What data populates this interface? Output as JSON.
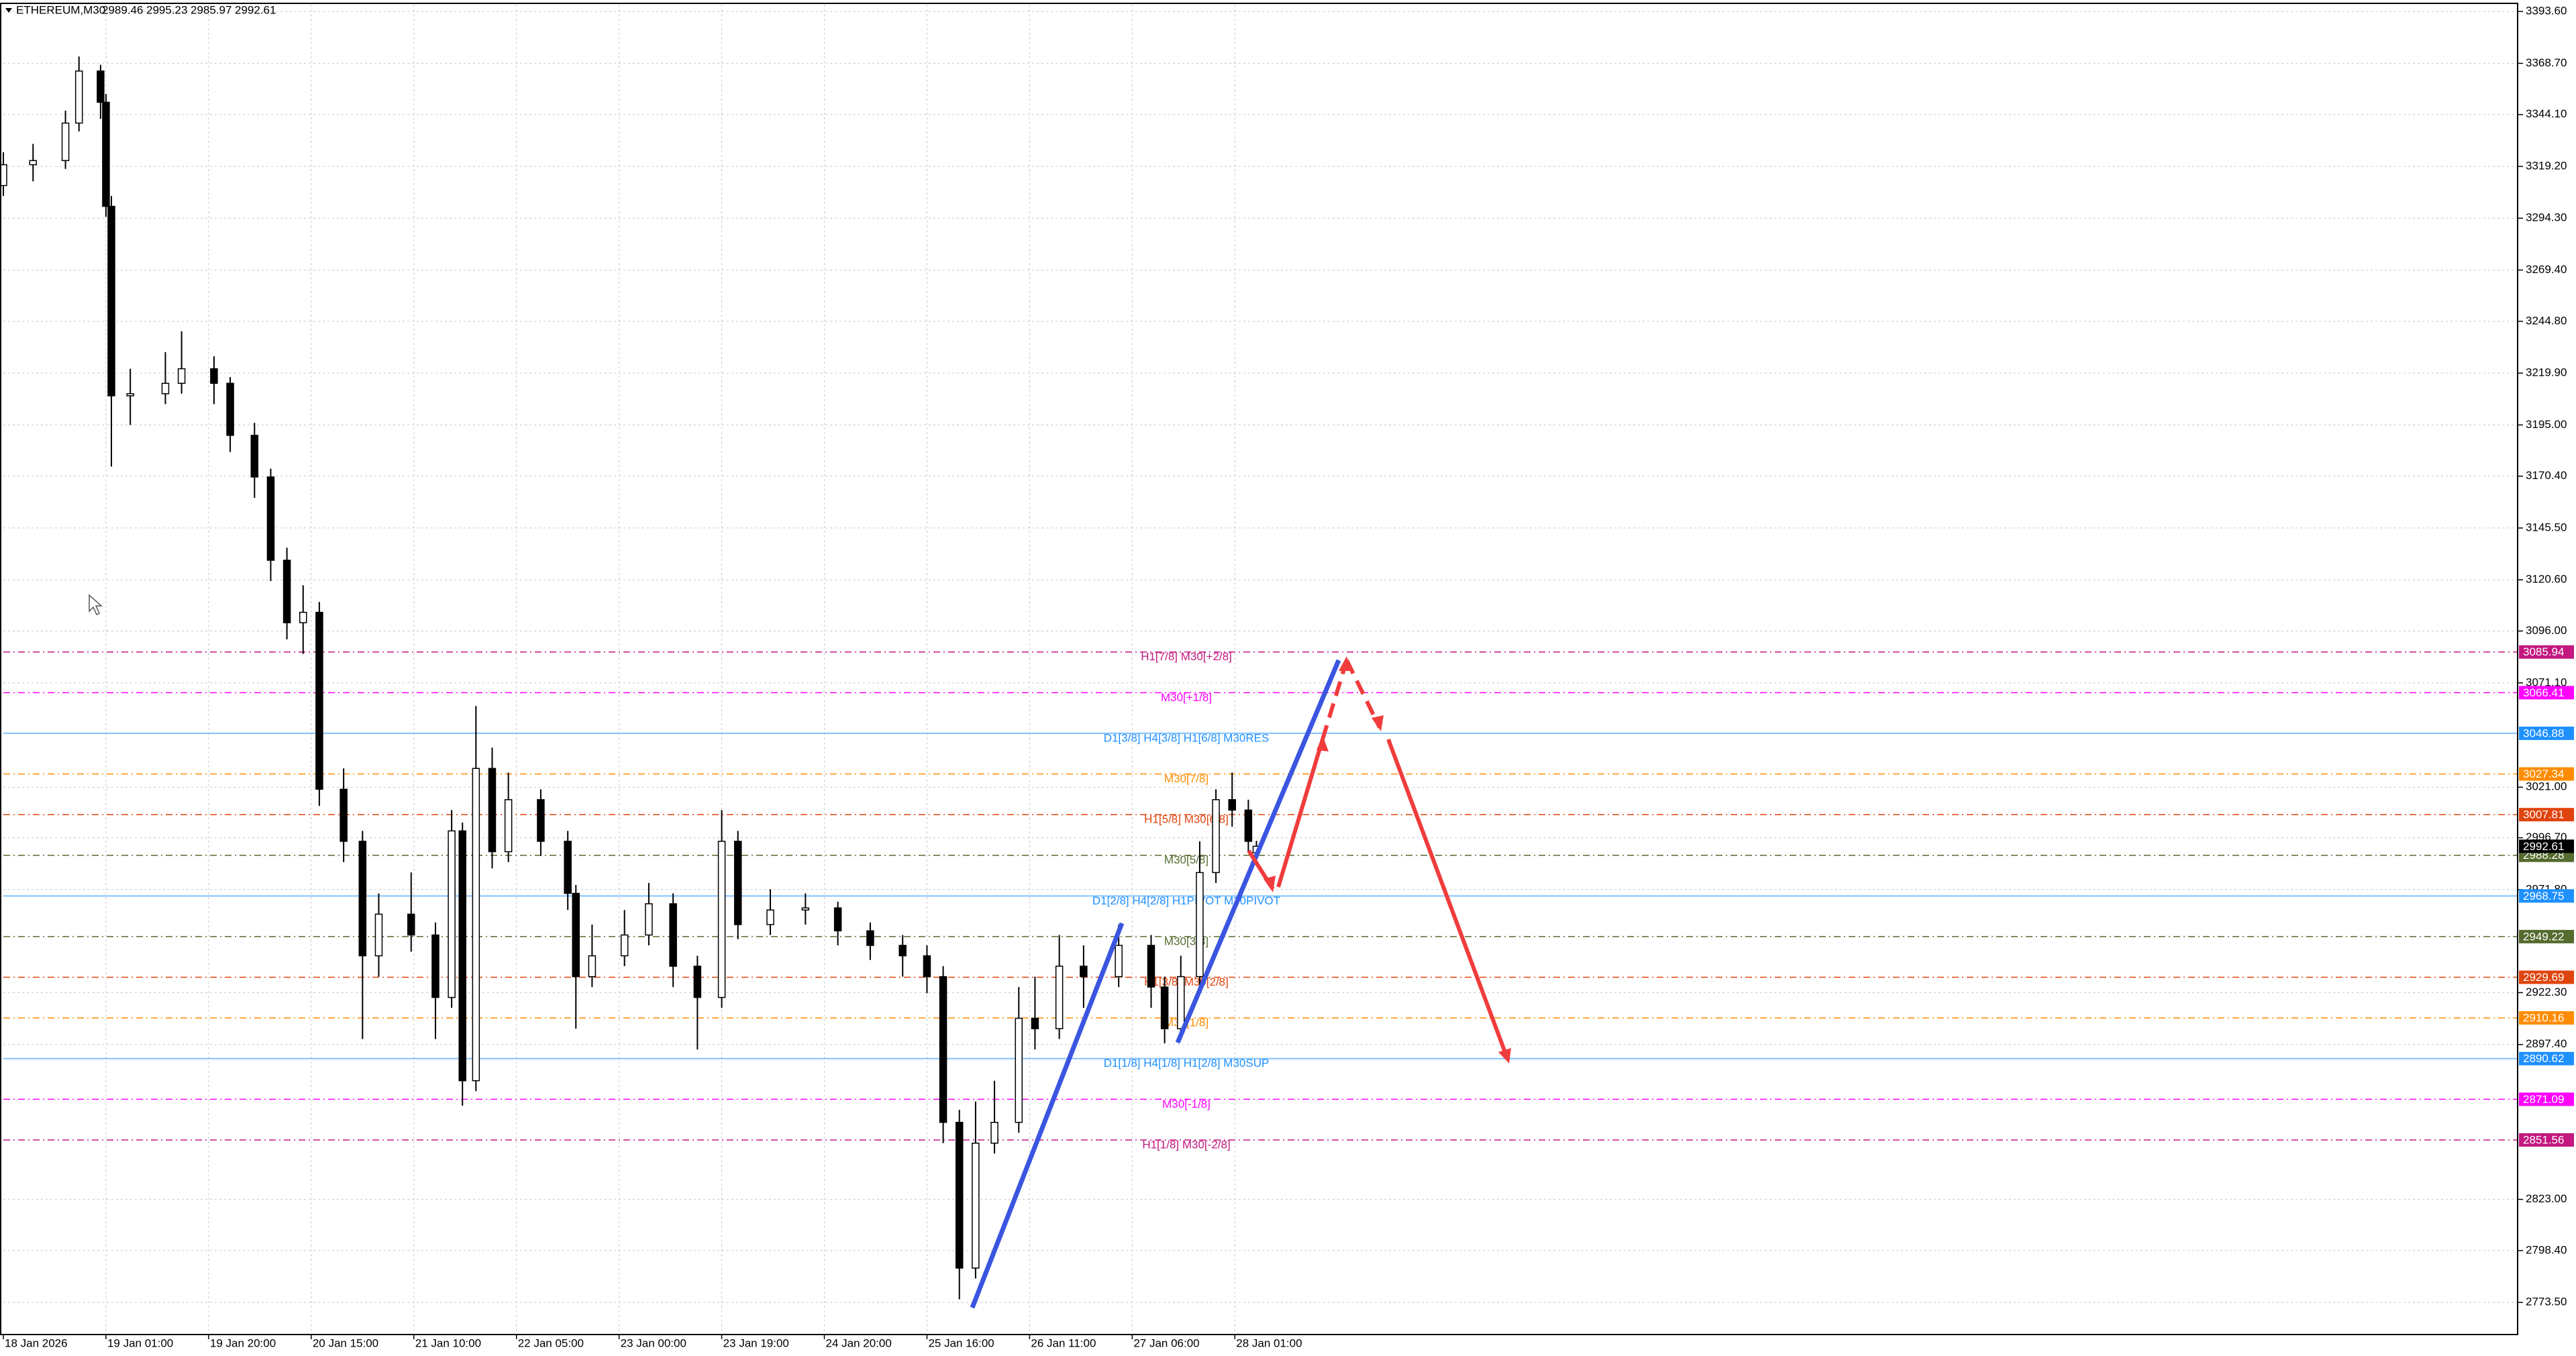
{
  "chart_data": {
    "type": "candlestick",
    "symbol": "ETHEREUM,M30",
    "x": [
      0,
      11,
      23,
      28,
      36,
      38,
      40,
      47,
      60,
      66,
      78,
      84,
      93,
      99,
      105,
      111,
      117,
      126,
      133,
      139,
      151,
      160,
      166,
      170,
      175,
      181,
      187,
      199,
      209,
      212,
      218,
      230,
      239,
      248,
      257,
      266,
      272,
      284,
      297,
      309,
      321,
      333,
      342,
      348,
      354,
      360,
      367,
      376,
      382,
      391,
      400,
      413,
      425,
      430,
      436,
      443,
      449,
      455,
      461,
      464
    ],
    "open": [
      3310,
      3320,
      3322,
      3340,
      3365,
      3350,
      3300,
      3209,
      3210,
      3215,
      3222,
      3215,
      3190,
      3170,
      3130,
      3100,
      3105,
      3020,
      2995,
      2940,
      2960,
      2950,
      2920,
      3000,
      2880,
      3030,
      2990,
      3015,
      2995,
      2970,
      2930,
      2940,
      2950,
      2965,
      2935,
      2920,
      2995,
      2955,
      2962,
      2963,
      2952,
      2945,
      2940,
      2930,
      2860,
      2790,
      2850,
      2860,
      2910,
      2905,
      2935,
      2930,
      2945,
      2925,
      2905,
      2930,
      2980,
      3015,
      3010,
      2989.46
    ],
    "high": [
      3326,
      3330,
      3346,
      3372,
      3368,
      3354,
      3305,
      3222,
      3230,
      3240,
      3228,
      3218,
      3196,
      3174,
      3136,
      3118,
      3110,
      3030,
      3000,
      2970,
      2980,
      2956,
      3010,
      3004,
      3060,
      3040,
      3028,
      3020,
      3000,
      2974,
      2955,
      2962,
      2975,
      2970,
      2940,
      3010,
      3000,
      2972,
      2970,
      2966,
      2956,
      2950,
      2945,
      2935,
      2866,
      2870,
      2880,
      2925,
      2930,
      2950,
      2945,
      2955,
      2950,
      2930,
      2940,
      2995,
      3020,
      3028,
      3015,
      2995.23
    ],
    "low": [
      3305,
      3312,
      3318,
      3336,
      3342,
      3295,
      3175,
      3195,
      3205,
      3210,
      3205,
      3182,
      3160,
      3120,
      3092,
      3085,
      3012,
      2985,
      2900,
      2930,
      2942,
      2900,
      2915,
      2868,
      2875,
      2982,
      2985,
      2988,
      2962,
      2905,
      2925,
      2935,
      2945,
      2925,
      2895,
      2915,
      2948,
      2950,
      2955,
      2945,
      2938,
      2930,
      2922,
      2850,
      2775,
      2785,
      2845,
      2855,
      2895,
      2900,
      2915,
      2925,
      2915,
      2898,
      2900,
      2925,
      2975,
      3002,
      2990,
      2985.97
    ],
    "close": [
      3320,
      3322,
      3340,
      3365,
      3350,
      3300,
      3209,
      3210,
      3215,
      3222,
      3215,
      3190,
      3170,
      3130,
      3100,
      3105,
      3020,
      2995,
      2940,
      2960,
      2950,
      2920,
      3000,
      2880,
      3030,
      2990,
      3015,
      2995,
      2970,
      2930,
      2940,
      2950,
      2965,
      2935,
      2920,
      2995,
      2955,
      2962,
      2963,
      2952,
      2945,
      2940,
      2930,
      2860,
      2790,
      2850,
      2860,
      2910,
      2905,
      2935,
      2930,
      2945,
      2925,
      2905,
      2930,
      2980,
      3015,
      3010,
      2995,
      2992.61
    ],
    "xlim": [
      0,
      931
    ],
    "xticks": [
      {
        "value": 0,
        "label": "18 Jan 2026"
      },
      {
        "value": 38,
        "label": "19 Jan 01:00"
      },
      {
        "value": 76,
        "label": "19 Jan 20:00"
      },
      {
        "value": 114,
        "label": "20 Jan 15:00"
      },
      {
        "value": 152,
        "label": "21 Jan 10:00"
      },
      {
        "value": 190,
        "label": "22 Jan 05:00"
      },
      {
        "value": 228,
        "label": "23 Jan 00:00"
      },
      {
        "value": 266,
        "label": "23 Jan 19:00"
      },
      {
        "value": 304,
        "label": "24 Jan 20:00"
      },
      {
        "value": 342,
        "label": "25 Jan 16:00"
      },
      {
        "value": 380,
        "label": "26 Jan 11:00"
      },
      {
        "value": 418,
        "label": "27 Jan 06:00"
      },
      {
        "value": 456,
        "label": "28 Jan 01:00"
      }
    ],
    "ylim": [
      2758.4,
      3396.87
    ],
    "yticks": [
      {
        "value": 3393.6,
        "label": "3393.60"
      },
      {
        "value": 3368.7,
        "label": "3368.70"
      },
      {
        "value": 3344.1,
        "label": "3344.10"
      },
      {
        "value": 3319.2,
        "label": "3319.20"
      },
      {
        "value": 3294.3,
        "label": "3294.30"
      },
      {
        "value": 3269.4,
        "label": "3269.40"
      },
      {
        "value": 3244.8,
        "label": "3244.80"
      },
      {
        "value": 3219.9,
        "label": "3219.90"
      },
      {
        "value": 3195,
        "label": "3195.00"
      },
      {
        "value": 3170.4,
        "label": "3170.40"
      },
      {
        "value": 3145.5,
        "label": "3145.50"
      },
      {
        "value": 3120.6,
        "label": "3120.60"
      },
      {
        "value": 3096,
        "label": "3096.00"
      },
      {
        "value": 3071.1,
        "label": "3071.10"
      },
      {
        "value": 3021,
        "label": "3021.00"
      },
      {
        "value": 2996.7,
        "label": "2996.70"
      },
      {
        "value": 2971.8,
        "label": "2971.80"
      },
      {
        "value": 2922.3,
        "label": "2922.30"
      },
      {
        "value": 2897.4,
        "label": "2897.40"
      },
      {
        "value": 2823,
        "label": "2823.00"
      },
      {
        "value": 2798.4,
        "label": "2798.40"
      },
      {
        "value": 2773.5,
        "label": "2773.50"
      }
    ],
    "grid": true,
    "up_color": "#ffffff",
    "down_color": "#000000",
    "levels": [
      {
        "price": 3085.94,
        "label": "H1[7/8] M30[+2/8]",
        "color": "#c2187f",
        "dash": true
      },
      {
        "price": 3066.41,
        "label": "M30[+1/8]",
        "color": "#ff00ff",
        "dash": true
      },
      {
        "price": 3046.88,
        "label": "D1[3/8] H4[3/8] H1[6/8] M30RES",
        "color": "#1e90ff",
        "dash": false
      },
      {
        "price": 3027.34,
        "label": "M30[7/8]",
        "color": "#ff8c00",
        "dash": true
      },
      {
        "price": 3007.81,
        "label": "H1[5/8] M30[6/8]",
        "color": "#e0440e",
        "dash": true
      },
      {
        "price": 2988.28,
        "label": "M30[5/8]",
        "color": "#556b2f",
        "dash": true
      },
      {
        "price": 2968.75,
        "label": "D1[2/8] H4[2/8] H1PIVOT M30PIVOT",
        "color": "#1e90ff",
        "dash": false
      },
      {
        "price": 2949.22,
        "label": "M30[3/8]",
        "color": "#556b2f",
        "dash": true
      },
      {
        "price": 2929.69,
        "label": "H1[3/8] M30[2/8]",
        "color": "#e0440e",
        "dash": true
      },
      {
        "price": 2910.16,
        "label": "M30[1/8]",
        "color": "#ff8c00",
        "dash": true
      },
      {
        "price": 2890.62,
        "label": "D1[1/8] H4[1/8] H1[2/8] M30SUP",
        "color": "#1e90ff",
        "dash": false
      },
      {
        "price": 2871.09,
        "label": "M30[-1/8]",
        "color": "#ff00ff",
        "dash": true
      },
      {
        "price": 2851.56,
        "label": "H1[1/8] M30[-2/8]",
        "color": "#c2187f",
        "dash": true
      }
    ]
  }
}
